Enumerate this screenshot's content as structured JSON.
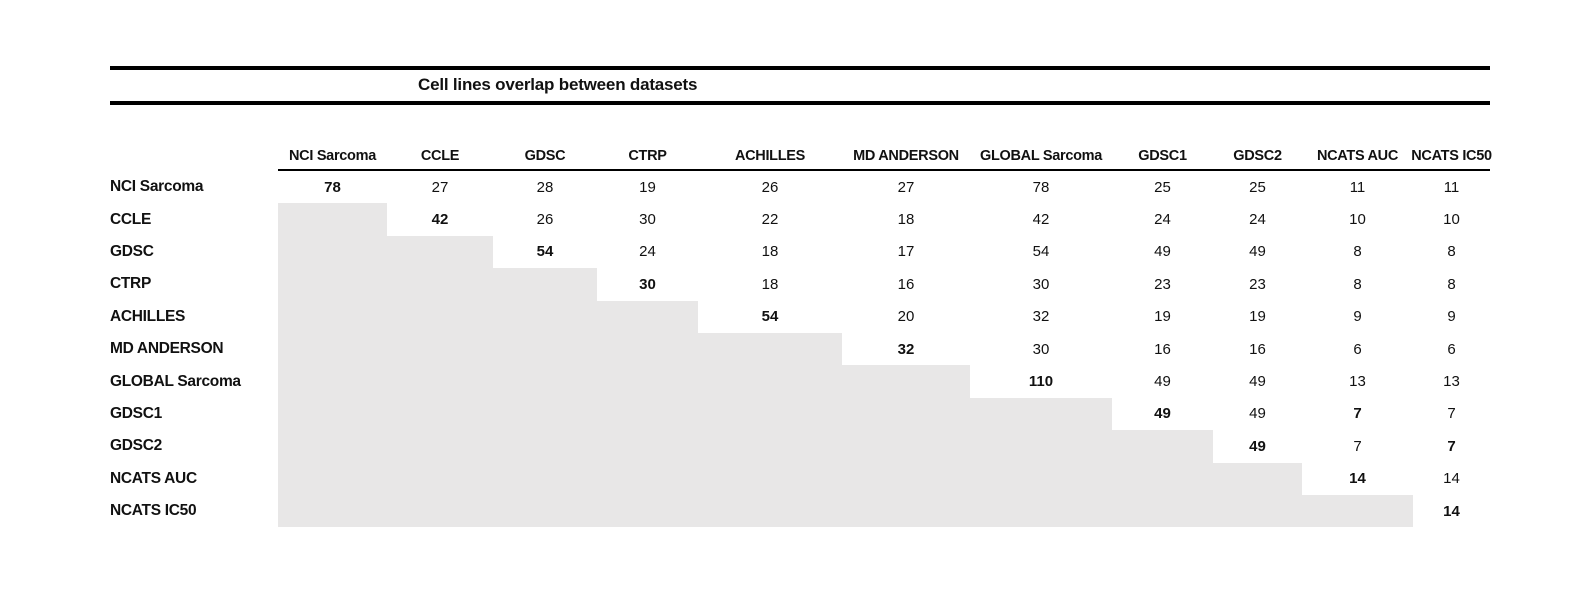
{
  "title": "Cell lines overlap between datasets",
  "colors": {
    "shaded_cell": "#e8e7e7",
    "rule": "#000000",
    "text": "#111111"
  },
  "chart_data": {
    "type": "table",
    "title": "Cell lines overlap between datasets",
    "column_headers": [
      "NCI Sarcoma",
      "CCLE",
      "GDSC",
      "CTRP",
      "ACHILLES",
      "MD ANDERSON",
      "GLOBAL Sarcoma",
      "GDSC1",
      "GDSC2",
      "NCATS AUC",
      "NCATS IC50"
    ],
    "row_labels": [
      "NCI Sarcoma",
      "CCLE",
      "GDSC",
      "CTRP",
      "ACHILLES",
      "MD ANDERSON",
      "GLOBAL Sarcoma",
      "GDSC1",
      "GDSC2",
      "NCATS AUC",
      "NCATS IC50"
    ],
    "matrix": [
      [
        78,
        27,
        28,
        19,
        26,
        27,
        78,
        25,
        25,
        11,
        11
      ],
      [
        null,
        42,
        26,
        30,
        22,
        18,
        42,
        24,
        24,
        10,
        10
      ],
      [
        null,
        null,
        54,
        24,
        18,
        17,
        54,
        49,
        49,
        8,
        8
      ],
      [
        null,
        null,
        null,
        30,
        18,
        16,
        30,
        23,
        23,
        8,
        8
      ],
      [
        null,
        null,
        null,
        null,
        54,
        20,
        32,
        19,
        19,
        9,
        9
      ],
      [
        null,
        null,
        null,
        null,
        null,
        32,
        30,
        16,
        16,
        6,
        6
      ],
      [
        null,
        null,
        null,
        null,
        null,
        null,
        110,
        49,
        49,
        13,
        13
      ],
      [
        null,
        null,
        null,
        null,
        null,
        null,
        null,
        49,
        49,
        7,
        7
      ],
      [
        null,
        null,
        null,
        null,
        null,
        null,
        null,
        null,
        49,
        7,
        7
      ],
      [
        null,
        null,
        null,
        null,
        null,
        null,
        null,
        null,
        null,
        14,
        14
      ],
      [
        null,
        null,
        null,
        null,
        null,
        null,
        null,
        null,
        null,
        null,
        14
      ]
    ],
    "bold_cells": [
      [
        0,
        0
      ],
      [
        1,
        1
      ],
      [
        2,
        2
      ],
      [
        3,
        3
      ],
      [
        4,
        4
      ],
      [
        5,
        5
      ],
      [
        6,
        6
      ],
      [
        7,
        7
      ],
      [
        7,
        9
      ],
      [
        8,
        8
      ],
      [
        8,
        10
      ],
      [
        9,
        9
      ],
      [
        10,
        10
      ]
    ],
    "shaded_region": "lower-triangle",
    "legend_position": "none",
    "grid": false
  }
}
